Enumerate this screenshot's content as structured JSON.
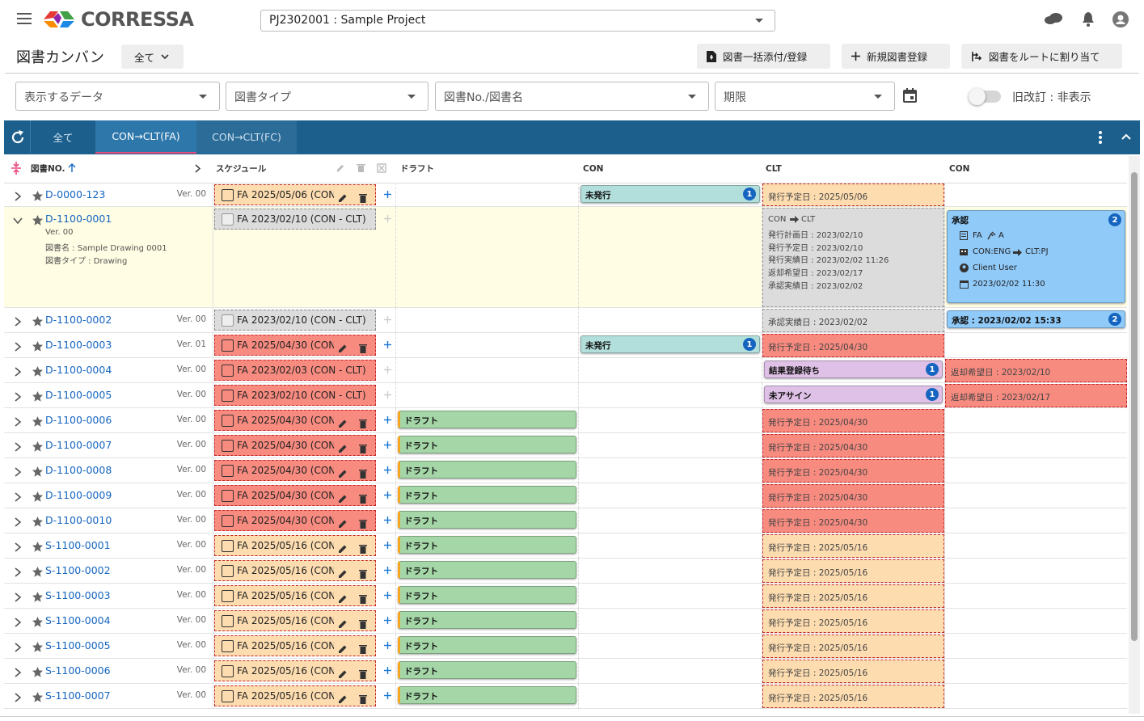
{
  "header": {
    "logo": "CORRESSA",
    "project": "PJ2302001 : Sample Project"
  },
  "toolbar": {
    "title": "図書カンバン",
    "filter": "全て",
    "buttons": [
      "図書一括添付/登録",
      "新規図書登録",
      "図書をルートに割り当て"
    ]
  },
  "filters": {
    "data": "表示するデータ",
    "type": "図書タイプ",
    "number": "図書No./図書名",
    "deadline": "期限",
    "toggle": "旧改訂 : 非表示"
  },
  "tabs": [
    "全て",
    "CON→CLT(FA)",
    "CON→CLT(FC)"
  ],
  "columns": [
    "図書NO.",
    "スケジュール",
    "ドラフト",
    "CON",
    "CLT",
    "CON"
  ],
  "rows": [
    {
      "id": "D-0000-123",
      "ver": "Ver. 00",
      "schedule": {
        "text": "FA 2025/05/06 (CON...",
        "color": "#fddcb0",
        "actions": true
      },
      "con": {
        "label": "未発行",
        "count": 1,
        "color": "#b2dfdb"
      },
      "clt": {
        "text": "発行予定日 : 2025/05/06",
        "color": "#fddcb0"
      }
    },
    {
      "id": "D-1100-0001",
      "ver": "Ver. 00",
      "details": [
        "Ver. 00",
        "図書名 : Sample Drawing 0001",
        "図書タイプ : Drawing"
      ],
      "schedule": {
        "text": "FA 2023/02/10 (CON - CLT)",
        "color": "#dcdcdc"
      },
      "clt": {
        "color": "#dcdcdc",
        "route": [
          "CON",
          "CLT"
        ],
        "lines": [
          "発行計画日 : 2023/02/10",
          "発行予定日 : 2023/02/10",
          "発行実績日 : 2023/02/02 11:26",
          "返却希望日 : 2023/02/17",
          "承認実績日 : 2023/02/02"
        ]
      },
      "con2": {
        "label": "承認",
        "count": 2,
        "color": "#90caf9",
        "doc": [
          "FA",
          "A"
        ],
        "route": [
          "CON:ENG",
          "CLT:PJ"
        ],
        "user": "Client User",
        "date": "2023/02/02 11:30"
      }
    },
    {
      "id": "D-1100-0002",
      "ver": "Ver. 00",
      "schedule": {
        "text": "FA 2023/02/10 (CON - CLT)",
        "color": "#dcdcdc"
      },
      "clt": {
        "text": "承認実績日 : 2023/02/02",
        "color": "#dcdcdc"
      },
      "con2": {
        "label": "承認 : 2023/02/02 15:33",
        "count": 2,
        "color": "#90caf9"
      }
    },
    {
      "id": "D-1100-0003",
      "ver": "Ver. 01",
      "schedule": {
        "text": "FA 2025/04/30 (CON...",
        "color": "#f88b80",
        "actions": true
      },
      "con": {
        "label": "未発行",
        "count": 1,
        "color": "#b2dfdb"
      },
      "clt": {
        "text": "発行予定日 : 2025/04/30",
        "color": "#f88b80"
      }
    },
    {
      "id": "D-1100-0004",
      "ver": "Ver. 00",
      "schedule": {
        "text": "FA 2023/02/03 (CON - CLT)",
        "color": "#f88b80"
      },
      "clt": {
        "label": "結果登録待ち",
        "count": 1,
        "color": "#dfc0e6"
      },
      "con2": {
        "text": "返却希望日 : 2023/02/10",
        "color": "#f88b80"
      }
    },
    {
      "id": "D-1100-0005",
      "ver": "Ver. 00",
      "schedule": {
        "text": "FA 2023/02/10 (CON - CLT)",
        "color": "#f88b80"
      },
      "clt": {
        "label": "未アサイン",
        "count": 1,
        "color": "#dfc0e6"
      },
      "con2": {
        "text": "返却希望日 : 2023/02/17",
        "color": "#f88b80"
      }
    },
    {
      "id": "D-1100-0006",
      "ver": "Ver. 00",
      "schedule": {
        "text": "FA 2025/04/30 (CON...",
        "color": "#f88b80",
        "actions": true
      },
      "draft": {
        "label": "ドラフト",
        "color": "#a5d6a7"
      },
      "clt": {
        "text": "発行予定日 : 2025/04/30",
        "color": "#f88b80"
      }
    },
    {
      "id": "D-1100-0007",
      "ver": "Ver. 00",
      "schedule": {
        "text": "FA 2025/04/30 (CON...",
        "color": "#f88b80",
        "actions": true
      },
      "draft": {
        "label": "ドラフト",
        "color": "#a5d6a7"
      },
      "clt": {
        "text": "発行予定日 : 2025/04/30",
        "color": "#f88b80"
      }
    },
    {
      "id": "D-1100-0008",
      "ver": "Ver. 00",
      "schedule": {
        "text": "FA 2025/04/30 (CON...",
        "color": "#f88b80",
        "actions": true
      },
      "draft": {
        "label": "ドラフト",
        "color": "#a5d6a7"
      },
      "clt": {
        "text": "発行予定日 : 2025/04/30",
        "color": "#f88b80"
      }
    },
    {
      "id": "D-1100-0009",
      "ver": "Ver. 00",
      "schedule": {
        "text": "FA 2025/04/30 (CON...",
        "color": "#f88b80",
        "actions": true
      },
      "draft": {
        "label": "ドラフト",
        "color": "#a5d6a7"
      },
      "clt": {
        "text": "発行予定日 : 2025/04/30",
        "color": "#f88b80"
      }
    },
    {
      "id": "D-1100-0010",
      "ver": "Ver. 00",
      "schedule": {
        "text": "FA 2025/04/30 (CON...",
        "color": "#f88b80",
        "actions": true
      },
      "draft": {
        "label": "ドラフト",
        "color": "#a5d6a7"
      },
      "clt": {
        "text": "発行予定日 : 2025/04/30",
        "color": "#f88b80"
      }
    },
    {
      "id": "S-1100-0001",
      "ver": "Ver. 00",
      "schedule": {
        "text": "FA 2025/05/16 (CON...",
        "color": "#fddcb0",
        "actions": true
      },
      "draft": {
        "label": "ドラフト",
        "color": "#a5d6a7"
      },
      "clt": {
        "text": "発行予定日 : 2025/05/16",
        "color": "#fddcb0"
      }
    },
    {
      "id": "S-1100-0002",
      "ver": "Ver. 00",
      "schedule": {
        "text": "FA 2025/05/16 (CON...",
        "color": "#fddcb0",
        "actions": true
      },
      "draft": {
        "label": "ドラフト",
        "color": "#a5d6a7"
      },
      "clt": {
        "text": "発行予定日 : 2025/05/16",
        "color": "#fddcb0"
      }
    },
    {
      "id": "S-1100-0003",
      "ver": "Ver. 00",
      "schedule": {
        "text": "FA 2025/05/16 (CON...",
        "color": "#fddcb0",
        "actions": true
      },
      "draft": {
        "label": "ドラフト",
        "color": "#a5d6a7"
      },
      "clt": {
        "text": "発行予定日 : 2025/05/16",
        "color": "#fddcb0"
      }
    },
    {
      "id": "S-1100-0004",
      "ver": "Ver. 00",
      "schedule": {
        "text": "FA 2025/05/16 (CON...",
        "color": "#fddcb0",
        "actions": true
      },
      "draft": {
        "label": "ドラフト",
        "color": "#a5d6a7"
      },
      "clt": {
        "text": "発行予定日 : 2025/05/16",
        "color": "#fddcb0"
      }
    },
    {
      "id": "S-1100-0005",
      "ver": "Ver. 00",
      "schedule": {
        "text": "FA 2025/05/16 (CON...",
        "color": "#fddcb0",
        "actions": true
      },
      "draft": {
        "label": "ドラフト",
        "color": "#a5d6a7"
      },
      "clt": {
        "text": "発行予定日 : 2025/05/16",
        "color": "#fddcb0"
      }
    },
    {
      "id": "S-1100-0006",
      "ver": "Ver. 00",
      "schedule": {
        "text": "FA 2025/05/16 (CON...",
        "color": "#fddcb0",
        "actions": true
      },
      "draft": {
        "label": "ドラフト",
        "color": "#a5d6a7"
      },
      "clt": {
        "text": "発行予定日 : 2025/05/16",
        "color": "#fddcb0"
      }
    },
    {
      "id": "S-1100-0007",
      "ver": "Ver. 00",
      "schedule": {
        "text": "FA 2025/05/16 (CON...",
        "color": "#fddcb0",
        "actions": true
      },
      "draft": {
        "label": "ドラフト",
        "color": "#a5d6a7"
      },
      "clt": {
        "text": "発行予定日 : 2025/05/16",
        "color": "#fddcb0"
      }
    }
  ]
}
